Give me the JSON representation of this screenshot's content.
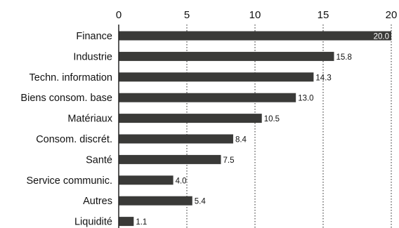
{
  "chart_data": {
    "type": "bar",
    "orientation": "horizontal",
    "title": "",
    "xlabel": "",
    "ylabel": "",
    "xlim": [
      0,
      20
    ],
    "x_ticks": [
      "0",
      "5",
      "10",
      "15",
      "20"
    ],
    "x_tick_values": [
      0,
      5,
      10,
      15,
      20
    ],
    "axis_position": "top",
    "grid": "vertical dotted",
    "categories": [
      "Finance",
      "Industrie",
      "Techn. information",
      "Biens consom. base",
      "Matériaux",
      "Consom. discrét.",
      "Santé",
      "Service communic.",
      "Autres",
      "Liquidité"
    ],
    "values": [
      20.0,
      15.8,
      14.3,
      13.0,
      10.5,
      8.4,
      7.5,
      4.0,
      5.4,
      1.1
    ],
    "value_labels": [
      "20.0",
      "15.8",
      "14.3",
      "13.0",
      "10.5",
      "8.4",
      "7.5",
      "4.0",
      "5.4",
      "1.1"
    ],
    "colors": {
      "bar": "#3a3a38",
      "text": "#111111",
      "inside_label": "#ffffff"
    }
  }
}
